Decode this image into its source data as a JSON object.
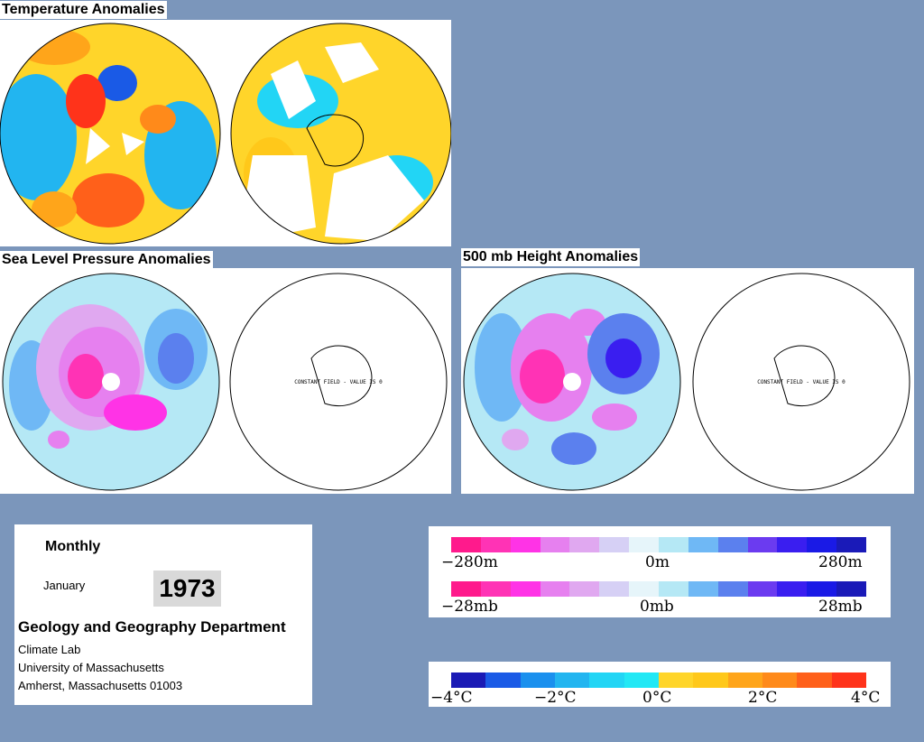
{
  "titles": {
    "temperature": "Temperature Anomalies",
    "slp": "Sea Level Pressure Anomalies",
    "height": "500 mb Height Anomalies"
  },
  "map_notes": {
    "slp_south": "CONSTANT FIELD - VALUE IS 0",
    "height_south": "CONSTANT FIELD - VALUE IS 0"
  },
  "info": {
    "period": "Monthly",
    "month": "January",
    "year": "1973",
    "department": "Geology and Geography Department",
    "lab": "Climate Lab",
    "university": "University of Massachusetts",
    "address": "Amherst, Massachusetts 01003"
  },
  "legend_height_pressure": {
    "colors": [
      "#ff1a8c",
      "#ff33b5",
      "#ff33e6",
      "#e680ef",
      "#e0a8f0",
      "#d6d0f5",
      "#e6f5fa",
      "#b5e8f5",
      "#6fb8f5",
      "#5b80ee",
      "#6b3bf0",
      "#3a1ef0",
      "#1a1ae6",
      "#1a1ab8"
    ],
    "height_labels": [
      "−280m",
      "0m",
      "280m"
    ],
    "pressure_labels": [
      "−28mb",
      "0mb",
      "28mb"
    ]
  },
  "legend_temperature": {
    "colors": [
      "#1a1ab5",
      "#1a5ae6",
      "#1a90ee",
      "#22b5f0",
      "#22d5f5",
      "#22e8f5",
      "#ffd52a",
      "#ffc81a",
      "#ffa51a",
      "#ff8a1a",
      "#ff601a",
      "#ff331a"
    ],
    "labels": [
      "−4°C",
      "−2°C",
      "0°C",
      "2°C",
      "4°C"
    ]
  }
}
